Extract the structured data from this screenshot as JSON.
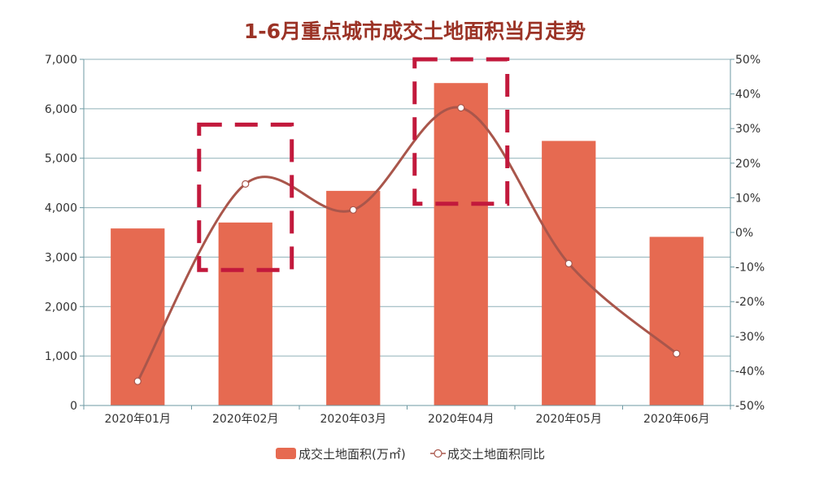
{
  "chart_data": {
    "type": "bar",
    "title": "1-6月重点城市成交土地面积当月走势",
    "categories": [
      "2020年01月",
      "2020年02月",
      "2020年03月",
      "2020年04月",
      "2020年05月",
      "2020年06月"
    ],
    "series": [
      {
        "name": "成交土地面积(万㎡)",
        "type": "bar",
        "axis": "left",
        "values": [
          3580,
          3700,
          4340,
          6520,
          5350,
          3410
        ],
        "color": "#e66a51"
      },
      {
        "name": "成交土地面积同比",
        "type": "line",
        "axis": "right",
        "smooth": true,
        "values": [
          -43,
          14,
          6.5,
          36,
          -9,
          -35
        ],
        "color": "#a9564b"
      }
    ],
    "y_left": {
      "min": 0,
      "max": 7000,
      "ticks": [
        0,
        1000,
        2000,
        3000,
        4000,
        5000,
        6000,
        7000
      ],
      "tick_labels": [
        "0",
        "1,000",
        "2,000",
        "3,000",
        "4,000",
        "5,000",
        "6,000",
        "7,000"
      ]
    },
    "y_right": {
      "min": -50,
      "max": 50,
      "ticks": [
        -50,
        -40,
        -30,
        -20,
        -10,
        0,
        10,
        20,
        30,
        40,
        50
      ],
      "tick_labels": [
        "-50%",
        "-40%",
        "-30%",
        "-20%",
        "-10%",
        "0%",
        "10%",
        "20%",
        "30%",
        "40%",
        "50%"
      ]
    },
    "grid": true,
    "legend_position": "bottom-center",
    "highlights": [
      {
        "category_index": 1,
        "y_top": 5680,
        "y_bottom": 2740
      },
      {
        "category_index": 3,
        "y_top": 7000,
        "y_bottom": 4080
      }
    ],
    "colors": {
      "title": "#9b3326",
      "axis": "#6e9aa3",
      "grid": "#8fb0b8",
      "highlight": "#c2193c",
      "marker_fill": "#ffffff"
    }
  }
}
